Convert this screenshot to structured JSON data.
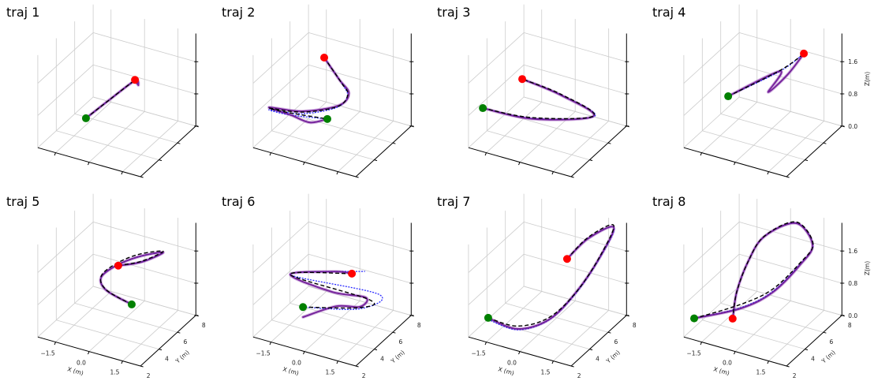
{
  "axes": {
    "xlim": [
      -2.3,
      2.3
    ],
    "ylim": [
      2,
      8
    ],
    "zlim": [
      0,
      2.3
    ],
    "xticks": [
      -1.5,
      0.0,
      1.5
    ],
    "xtick_labels": [
      "−1.5",
      "0.0",
      "1.5"
    ],
    "yticks": [
      2,
      4,
      6,
      8
    ],
    "ytick_labels": [
      "2",
      "4",
      "6",
      "8"
    ],
    "zticks": [
      0.0,
      0.8,
      1.6
    ],
    "ztick_labels": [
      "0.0",
      "0.8",
      "1.6"
    ],
    "xlabel": "X (m)",
    "ylabel": "Y (m)",
    "zlabel": "Z(m)",
    "grid": true
  },
  "colors": {
    "reference": "#000000",
    "planned": "#2a2aff",
    "executed": "#6c1594",
    "executed_light": "#b47ccc",
    "start": "#008000",
    "end": "#ff0000",
    "grid": "#cccccc"
  },
  "chart_data": [
    {
      "type": "line3d",
      "title": "traj 1",
      "show_xy_labels": false,
      "show_z_labels": false,
      "reference": [
        [
          -0.97,
          4,
          0.52
        ],
        [
          -0.28,
          5,
          0.9
        ],
        [
          0.4,
          6,
          1.27
        ]
      ],
      "planned": [
        [
          -0.97,
          4,
          0.52
        ],
        [
          -0.28,
          5,
          0.9
        ],
        [
          0.4,
          6,
          1.27
        ]
      ],
      "executed": [
        [
          -0.97,
          4,
          0.52
        ],
        [
          -0.28,
          5,
          0.9
        ],
        [
          0.4,
          6,
          1.25
        ],
        [
          0.55,
          6,
          1.16
        ],
        [
          0.45,
          6,
          1.22
        ]
      ],
      "start": [
        -0.97,
        4,
        0.52
      ],
      "end": [
        0.4,
        6,
        1.27
      ]
    },
    {
      "type": "line3d",
      "title": "traj 2",
      "show_xy_labels": false,
      "show_z_labels": false,
      "reference": [
        [
          -0.77,
          6,
          1.64
        ],
        [
          0.01,
          6,
          1.13
        ],
        [
          0.7,
          5,
          1.16
        ],
        [
          0.24,
          5,
          0.79
        ],
        [
          -0.93,
          4,
          0.68
        ],
        [
          -2.0,
          3,
          0.82
        ],
        [
          -1.05,
          3,
          0.85
        ],
        [
          0.61,
          3,
          0.96
        ]
      ],
      "planned": [
        [
          -0.77,
          6,
          1.64
        ],
        [
          0.05,
          6,
          1.1
        ],
        [
          0.68,
          5,
          1.12
        ],
        [
          0.2,
          5,
          0.76
        ],
        [
          -0.93,
          4,
          0.64
        ],
        [
          -2.0,
          3,
          0.78
        ],
        [
          -1.05,
          3,
          0.8
        ],
        [
          0.61,
          3,
          0.96
        ]
      ],
      "executed": [
        [
          -0.77,
          6,
          1.64
        ],
        [
          -0.1,
          6,
          1.2
        ],
        [
          0.75,
          5,
          1.2
        ],
        [
          0.28,
          5,
          0.82
        ],
        [
          -0.93,
          4,
          0.7
        ],
        [
          -2.0,
          3,
          0.84
        ],
        [
          -1.0,
          3,
          0.8
        ],
        [
          -0.17,
          3,
          0.75
        ],
        [
          0.61,
          3,
          0.96
        ]
      ],
      "start": [
        0.61,
        3,
        0.96
      ],
      "end": [
        -0.77,
        6,
        1.64
      ]
    },
    {
      "type": "line3d",
      "title": "traj 3",
      "show_xy_labels": false,
      "show_z_labels": false,
      "reference": [
        [
          -2.07,
          3,
          0.81
        ],
        [
          -0.23,
          4,
          0.65
        ],
        [
          2.08,
          5,
          0.85
        ],
        [
          0.18,
          6,
          0.88
        ],
        [
          -1.96,
          7,
          0.71
        ]
      ],
      "planned": [
        [
          -2.07,
          3,
          0.81
        ],
        [
          -0.23,
          4,
          0.63
        ],
        [
          2.12,
          5,
          0.85
        ],
        [
          0.2,
          6,
          0.86
        ],
        [
          -1.96,
          7,
          0.71
        ]
      ],
      "executed": [
        [
          -2.07,
          3,
          0.81
        ],
        [
          -0.23,
          4,
          0.62
        ],
        [
          2.06,
          5,
          0.84
        ],
        [
          0.16,
          6,
          0.86
        ],
        [
          -1.96,
          7,
          0.71
        ]
      ],
      "start": [
        -2.07,
        3,
        0.81
      ],
      "end": [
        -1.96,
        7,
        0.71
      ]
    },
    {
      "type": "line3d",
      "title": "traj 4",
      "show_xy_labels": false,
      "show_z_labels": true,
      "reference": [
        [
          -1.14,
          4,
          1.04
        ],
        [
          0.36,
          6,
          1.5
        ],
        [
          1.01,
          7,
          1.81
        ]
      ],
      "planned": [
        [
          -1.14,
          4,
          1.04
        ],
        [
          0.36,
          6,
          1.48
        ],
        [
          1.01,
          7,
          1.81
        ]
      ],
      "executed": [
        [
          -1.14,
          4,
          1.04
        ],
        [
          0.36,
          6,
          1.48
        ],
        [
          0.24,
          5,
          1.15
        ],
        [
          0.7,
          6,
          1.45
        ],
        [
          1.01,
          7,
          1.81
        ]
      ],
      "start": [
        -1.14,
        4,
        1.04
      ],
      "end": [
        1.01,
        7,
        1.81
      ]
    },
    {
      "type": "line3d",
      "title": "traj 5",
      "show_xy_labels": true,
      "show_z_labels": false,
      "reference": [
        [
          1.08,
          4,
          0.92
        ],
        [
          -0.05,
          4,
          1.1
        ],
        [
          -0.71,
          5,
          1.12
        ],
        [
          -0.52,
          6,
          1.24
        ],
        [
          0.12,
          7,
          1.38
        ],
        [
          1.25,
          7,
          1.64
        ],
        [
          0.71,
          6,
          1.52
        ],
        [
          -0.35,
          6,
          1.24
        ]
      ],
      "planned": [
        [
          1.08,
          4,
          0.92
        ],
        [
          -0.05,
          4,
          1.09
        ],
        [
          -0.71,
          5,
          1.09
        ],
        [
          -0.52,
          6,
          1.19
        ],
        [
          0.12,
          7,
          1.32
        ],
        [
          1.25,
          7,
          1.61
        ],
        [
          0.71,
          6,
          1.5
        ],
        [
          -0.35,
          6,
          1.24
        ]
      ],
      "executed": [
        [
          1.08,
          4,
          0.92
        ],
        [
          -0.05,
          4,
          1.09
        ],
        [
          -0.71,
          5,
          1.09
        ],
        [
          -0.52,
          6,
          1.19
        ],
        [
          0.12,
          7,
          1.32
        ],
        [
          1.25,
          7,
          1.61
        ],
        [
          0.71,
          6,
          1.5
        ],
        [
          -0.35,
          6,
          1.24
        ]
      ],
      "start": [
        1.08,
        4,
        0.92
      ],
      "end": [
        -0.35,
        6,
        1.24
      ]
    },
    {
      "type": "line3d",
      "title": "traj 6",
      "show_xy_labels": true,
      "show_z_labels": false,
      "reference": [
        [
          -0.48,
          3,
          0.82
        ],
        [
          1.65,
          4,
          0.93
        ],
        [
          1.66,
          5,
          0.92
        ],
        [
          -1.88,
          5,
          0.99
        ],
        [
          0.47,
          6,
          1.17
        ]
      ],
      "planned": [
        [
          -0.48,
          3,
          0.82
        ],
        [
          1.65,
          4,
          0.9
        ],
        [
          2.09,
          5,
          1.12
        ],
        [
          -1.88,
          5,
          0.99
        ],
        [
          1.06,
          6,
          1.32
        ]
      ],
      "executed": [
        [
          -0.48,
          3,
          0.57
        ],
        [
          0.6,
          4,
          0.8
        ],
        [
          1.65,
          4,
          0.95
        ],
        [
          1.5,
          5,
          0.95
        ],
        [
          0.0,
          5,
          0.85
        ],
        [
          -1.88,
          5,
          0.99
        ],
        [
          -0.3,
          6,
          1.1
        ],
        [
          0.47,
          6,
          1.17
        ]
      ],
      "start": [
        -0.48,
        3,
        0.82
      ],
      "end": [
        0.47,
        6,
        1.17
      ]
    },
    {
      "type": "line3d",
      "title": "traj 7",
      "show_xy_labels": true,
      "show_z_labels": false,
      "reference": [
        [
          -1.83,
          3,
          0.34
        ],
        [
          -0.52,
          3,
          0.34
        ],
        [
          0.48,
          4,
          0.5
        ],
        [
          1.3,
          5,
          1.06
        ],
        [
          1.95,
          6,
          1.85
        ],
        [
          1.72,
          8,
          2.15
        ],
        [
          1.0,
          7,
          1.95
        ],
        [
          0.05,
          7,
          1.26
        ]
      ],
      "planned": [
        [
          -1.83,
          3,
          0.3
        ],
        [
          -0.52,
          3,
          0.25
        ],
        [
          0.48,
          4,
          0.44
        ],
        [
          1.3,
          5,
          1.04
        ],
        [
          1.97,
          6,
          1.83
        ],
        [
          1.74,
          8,
          2.1
        ],
        [
          1.0,
          7,
          1.92
        ],
        [
          0.05,
          7,
          1.26
        ]
      ],
      "executed": [
        [
          -1.83,
          3,
          0.34
        ],
        [
          -0.52,
          3,
          0.27
        ],
        [
          0.48,
          4,
          0.45
        ],
        [
          1.3,
          5,
          1.06
        ],
        [
          1.95,
          6,
          1.83
        ],
        [
          1.72,
          8,
          2.1
        ],
        [
          1.0,
          7,
          1.92
        ],
        [
          0.05,
          7,
          1.26
        ]
      ],
      "start": [
        -1.83,
        3,
        0.34
      ],
      "end": [
        0.05,
        7,
        1.26
      ]
    },
    {
      "type": "line3d",
      "title": "traj 8",
      "show_xy_labels": true,
      "show_z_labels": true,
      "reference": [
        [
          -2.25,
          3,
          0.26
        ],
        [
          -0.58,
          4,
          0.66
        ],
        [
          0.42,
          5,
          0.98
        ],
        [
          1.24,
          6,
          1.55
        ],
        [
          1.42,
          7,
          1.85
        ],
        [
          0.24,
          8,
          2.0
        ],
        [
          -0.76,
          7,
          1.7
        ],
        [
          -1.05,
          6,
          1.26
        ],
        [
          -1.17,
          5,
          0.67
        ],
        [
          -0.94,
          4,
          0.25
        ]
      ],
      "planned": [
        [
          -2.25,
          3,
          0.26
        ],
        [
          -0.58,
          4,
          0.58
        ],
        [
          0.42,
          5,
          0.92
        ],
        [
          1.24,
          6,
          1.52
        ],
        [
          1.42,
          7,
          1.83
        ],
        [
          0.24,
          8,
          1.97
        ],
        [
          -0.76,
          7,
          1.69
        ],
        [
          -1.05,
          6,
          1.26
        ],
        [
          -1.17,
          5,
          0.67
        ],
        [
          -0.94,
          4,
          0.25
        ]
      ],
      "executed": [
        [
          -2.25,
          3,
          0.26
        ],
        [
          -0.58,
          4,
          0.56
        ],
        [
          0.42,
          5,
          0.9
        ],
        [
          1.24,
          6,
          1.5
        ],
        [
          1.4,
          7,
          1.82
        ],
        [
          0.24,
          8,
          1.97
        ],
        [
          -0.76,
          7,
          1.69
        ],
        [
          -1.05,
          6,
          1.26
        ],
        [
          -1.17,
          5,
          0.67
        ],
        [
          -0.94,
          4,
          0.2
        ]
      ],
      "start": [
        -2.25,
        3,
        0.26
      ],
      "end": [
        -0.94,
        4,
        0.25
      ]
    }
  ]
}
